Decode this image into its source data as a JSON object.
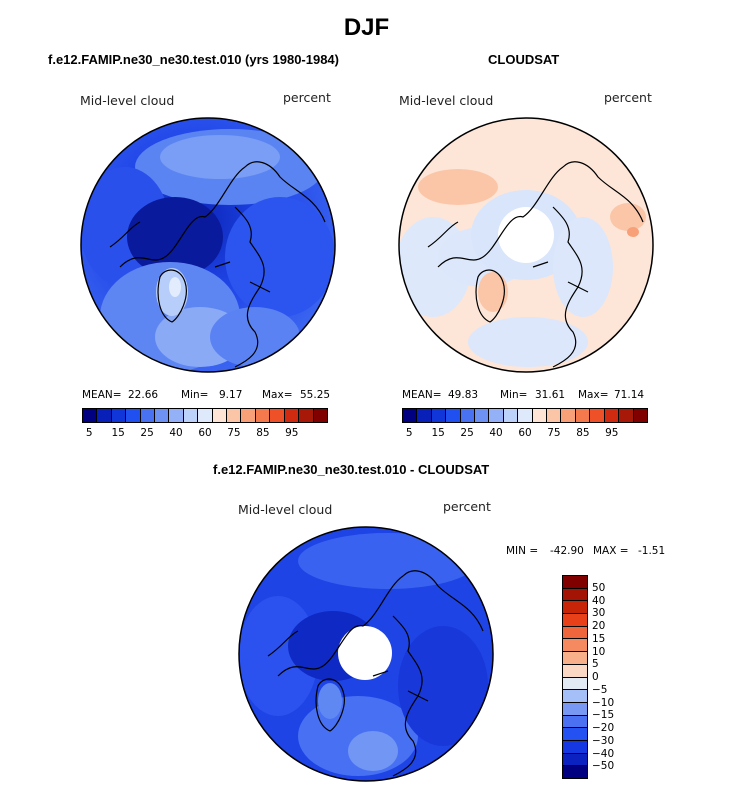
{
  "title": "DJF",
  "colors": {
    "seq": [
      "#000080",
      "#0820B8",
      "#1035D8",
      "#2050F0",
      "#4872F2",
      "#6E92F4",
      "#94B0F7",
      "#BCD2FA",
      "#DEEAFC",
      "#FDE4D4",
      "#FBC6A8",
      "#F8A078",
      "#F47A4E",
      "#EE5128",
      "#D02A10",
      "#A81808",
      "#800000"
    ],
    "diff": [
      "#000080",
      "#0C22C0",
      "#1638E2",
      "#2452F2",
      "#4B70F2",
      "#7898F4",
      "#A5BFF8",
      "#E2EBF4",
      "#FBD8C4",
      "#F8B08A",
      "#F58A60",
      "#F0663C",
      "#E84018",
      "#C82408",
      "#A41404",
      "#800000"
    ]
  },
  "chart_data": [
    {
      "type": "heatmap",
      "projection": "north polar stereographic",
      "title": "f.e12.FAMIP.ne30_ne30.test.010 (yrs 1980-1984)",
      "variable": "Mid-level cloud",
      "units": "percent",
      "stats": {
        "mean_label": "MEAN=",
        "mean": "22.66",
        "min_label": "Min=",
        "min": "9.17",
        "max_label": "Max=",
        "max": "55.25"
      },
      "colorbar_ticks": [
        "5",
        "15",
        "25",
        "40",
        "60",
        "75",
        "85",
        "95"
      ]
    },
    {
      "type": "heatmap",
      "projection": "north polar stereographic",
      "title": "CLOUDSAT",
      "variable": "Mid-level cloud",
      "units": "percent",
      "stats": {
        "mean_label": "MEAN=",
        "mean": "49.83",
        "min_label": "Min=",
        "min": "31.61",
        "max_label": "Max=",
        "max": "71.14"
      },
      "colorbar_ticks": [
        "5",
        "15",
        "25",
        "40",
        "60",
        "75",
        "85",
        "95"
      ]
    },
    {
      "type": "heatmap",
      "projection": "north polar stereographic",
      "title": "f.e12.FAMIP.ne30_ne30.test.010 - CLOUDSAT",
      "variable": "Mid-level cloud",
      "units": "percent",
      "stats": {
        "min_label": "MIN =",
        "min": "-42.90",
        "max_label": "MAX =",
        "max": "-1.51"
      },
      "colorbar_ticks": [
        "50",
        "40",
        "30",
        "20",
        "15",
        "10",
        "5",
        "0",
        "−5",
        "−10",
        "−15",
        "−20",
        "−30",
        "−40",
        "−50"
      ]
    }
  ]
}
